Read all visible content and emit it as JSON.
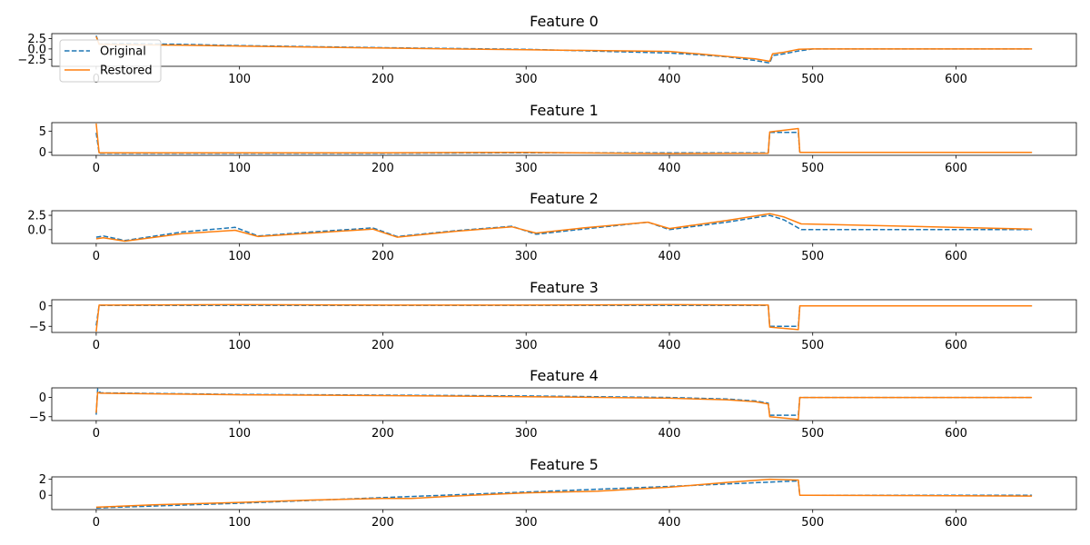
{
  "chart_data": [
    {
      "type": "line",
      "title": "Feature 0",
      "xlim": [
        -31,
        684
      ],
      "ylim": [
        -4.2,
        3.7
      ],
      "x_ticks": [
        0,
        100,
        200,
        300,
        400,
        500,
        600
      ],
      "y_ticks": [
        {
          "value": 2.5,
          "label": "2.5"
        },
        {
          "value": 0.0,
          "label": "0.0"
        },
        {
          "value": -2.5,
          "label": "−2.5"
        }
      ],
      "legend": {
        "placement": "upper-left",
        "entries": [
          "Original",
          "Restored"
        ]
      },
      "series": [
        {
          "name": "Original",
          "color": "#1f77b4",
          "style": "dashed",
          "x": [
            0,
            2,
            20,
            60,
            100,
            200,
            300,
            400,
            420,
            440,
            460,
            470,
            472,
            480,
            490,
            500,
            653
          ],
          "y": [
            3.2,
            1.2,
            1.3,
            1.1,
            0.8,
            0.3,
            -0.1,
            -1.0,
            -1.4,
            -1.9,
            -2.8,
            -3.4,
            -1.6,
            -1.2,
            -0.5,
            0.0,
            0.0
          ]
        },
        {
          "name": "Restored",
          "color": "#ff7f0e",
          "style": "solid",
          "x": [
            0,
            2,
            20,
            60,
            100,
            200,
            300,
            400,
            420,
            440,
            460,
            470,
            472,
            480,
            490,
            500,
            653
          ],
          "y": [
            3.0,
            1.1,
            1.0,
            0.9,
            0.7,
            0.2,
            -0.2,
            -0.6,
            -1.2,
            -1.8,
            -2.4,
            -3.0,
            -1.2,
            -0.8,
            -0.1,
            0.0,
            0.0
          ]
        }
      ]
    },
    {
      "type": "line",
      "title": "Feature 1",
      "xlim": [
        -31,
        684
      ],
      "ylim": [
        -0.7,
        7.0
      ],
      "x_ticks": [
        0,
        100,
        200,
        300,
        400,
        500,
        600
      ],
      "y_ticks": [
        {
          "value": 5,
          "label": "5"
        },
        {
          "value": 0,
          "label": "0"
        }
      ],
      "series": [
        {
          "name": "Original",
          "color": "#1f77b4",
          "style": "dashed",
          "x": [
            0,
            2,
            100,
            200,
            300,
            400,
            469,
            470,
            490,
            491,
            653
          ],
          "y": [
            4.6,
            -0.2,
            -0.2,
            -0.2,
            -0.1,
            -0.1,
            -0.1,
            4.7,
            4.7,
            0.0,
            0.0
          ]
        },
        {
          "name": "Restored",
          "color": "#ff7f0e",
          "style": "solid",
          "x": [
            0,
            2,
            100,
            200,
            300,
            400,
            469,
            470,
            490,
            491,
            653
          ],
          "y": [
            6.8,
            -0.1,
            -0.1,
            -0.1,
            0.0,
            -0.3,
            -0.2,
            4.8,
            5.6,
            0.0,
            0.0
          ]
        }
      ]
    },
    {
      "type": "line",
      "title": "Feature 2",
      "xlim": [
        -31,
        684
      ],
      "ylim": [
        -2.4,
        3.3
      ],
      "x_ticks": [
        0,
        100,
        200,
        300,
        400,
        500,
        600
      ],
      "y_ticks": [
        {
          "value": 2.5,
          "label": "2.5"
        },
        {
          "value": 0.0,
          "label": "0.0"
        }
      ],
      "series": [
        {
          "name": "Original",
          "color": "#1f77b4",
          "style": "dashed",
          "x": [
            0,
            5,
            20,
            60,
            97,
            113,
            150,
            193,
            210,
            250,
            290,
            307,
            340,
            385,
            400,
            440,
            470,
            480,
            492,
            653
          ],
          "y": [
            -1.3,
            -1.1,
            -1.9,
            -0.4,
            0.4,
            -1.1,
            -0.4,
            0.3,
            -1.2,
            -0.2,
            0.6,
            -0.8,
            0.1,
            1.3,
            0.0,
            1.3,
            2.5,
            1.7,
            0.0,
            0.0
          ]
        },
        {
          "name": "Restored",
          "color": "#ff7f0e",
          "style": "solid",
          "x": [
            0,
            5,
            20,
            60,
            97,
            113,
            150,
            193,
            210,
            250,
            290,
            307,
            340,
            385,
            400,
            440,
            470,
            480,
            492,
            653
          ],
          "y": [
            -1.6,
            -1.4,
            -2.0,
            -0.7,
            -0.1,
            -1.2,
            -0.6,
            0.1,
            -1.3,
            -0.3,
            0.5,
            -0.6,
            0.3,
            1.3,
            0.2,
            1.6,
            2.8,
            2.2,
            1.0,
            0.1
          ]
        }
      ]
    },
    {
      "type": "line",
      "title": "Feature 3",
      "xlim": [
        -31,
        684
      ],
      "ylim": [
        -6.5,
        1.5
      ],
      "x_ticks": [
        0,
        100,
        200,
        300,
        400,
        500,
        600
      ],
      "y_ticks": [
        {
          "value": 0,
          "label": "0"
        },
        {
          "value": -5,
          "label": "−5"
        }
      ],
      "series": [
        {
          "name": "Original",
          "color": "#1f77b4",
          "style": "dashed",
          "x": [
            0,
            2,
            100,
            200,
            300,
            400,
            469,
            470,
            490,
            491,
            653
          ],
          "y": [
            -4.8,
            0.1,
            0.1,
            0.1,
            0.1,
            0.1,
            0.1,
            -5.0,
            -5.0,
            0.0,
            0.0
          ]
        },
        {
          "name": "Restored",
          "color": "#ff7f0e",
          "style": "solid",
          "x": [
            0,
            2,
            100,
            200,
            300,
            400,
            469,
            470,
            490,
            491,
            653
          ],
          "y": [
            -6.3,
            0.2,
            0.3,
            0.2,
            0.2,
            0.3,
            0.2,
            -5.2,
            -5.8,
            0.0,
            0.0
          ]
        }
      ]
    },
    {
      "type": "line",
      "title": "Feature 4",
      "xlim": [
        -31,
        684
      ],
      "ylim": [
        -6.0,
        2.5
      ],
      "x_ticks": [
        0,
        100,
        200,
        300,
        400,
        500,
        600
      ],
      "y_ticks": [
        {
          "value": 0,
          "label": "0"
        },
        {
          "value": -5,
          "label": "−5"
        }
      ],
      "series": [
        {
          "name": "Original",
          "color": "#1f77b4",
          "style": "dashed",
          "x": [
            0,
            1,
            3,
            100,
            200,
            300,
            400,
            440,
            460,
            469,
            470,
            490,
            491,
            653
          ],
          "y": [
            -4.5,
            2.2,
            1.2,
            0.8,
            0.6,
            0.4,
            0.0,
            -0.4,
            -0.9,
            -1.5,
            -4.6,
            -4.6,
            0.0,
            0.0
          ]
        },
        {
          "name": "Restored",
          "color": "#ff7f0e",
          "style": "solid",
          "x": [
            0,
            1,
            3,
            100,
            200,
            300,
            400,
            440,
            460,
            469,
            470,
            490,
            491,
            653
          ],
          "y": [
            -4.0,
            1.3,
            1.1,
            0.7,
            0.5,
            0.2,
            -0.2,
            -0.6,
            -1.1,
            -1.7,
            -5.0,
            -5.7,
            0.0,
            0.0
          ]
        }
      ]
    },
    {
      "type": "line",
      "title": "Feature 5",
      "xlim": [
        -31,
        684
      ],
      "ylim": [
        -1.8,
        2.3
      ],
      "x_ticks": [
        0,
        100,
        200,
        300,
        400,
        500,
        600
      ],
      "y_ticks": [
        {
          "value": 2,
          "label": "2"
        },
        {
          "value": 0,
          "label": "0"
        }
      ],
      "series": [
        {
          "name": "Original",
          "color": "#1f77b4",
          "style": "dashed",
          "x": [
            0,
            100,
            200,
            300,
            400,
            490,
            491,
            653
          ],
          "y": [
            -1.6,
            -1.0,
            -0.3,
            0.4,
            1.1,
            1.8,
            0.0,
            0.0
          ]
        },
        {
          "name": "Restored",
          "color": "#ff7f0e",
          "style": "solid",
          "x": [
            0,
            40,
            100,
            150,
            200,
            220,
            250,
            300,
            350,
            400,
            440,
            470,
            490,
            491,
            653
          ],
          "y": [
            -1.5,
            -1.2,
            -0.9,
            -0.6,
            -0.4,
            -0.4,
            -0.1,
            0.3,
            0.5,
            1.0,
            1.6,
            2.0,
            1.9,
            0.0,
            -0.1
          ]
        }
      ]
    }
  ]
}
